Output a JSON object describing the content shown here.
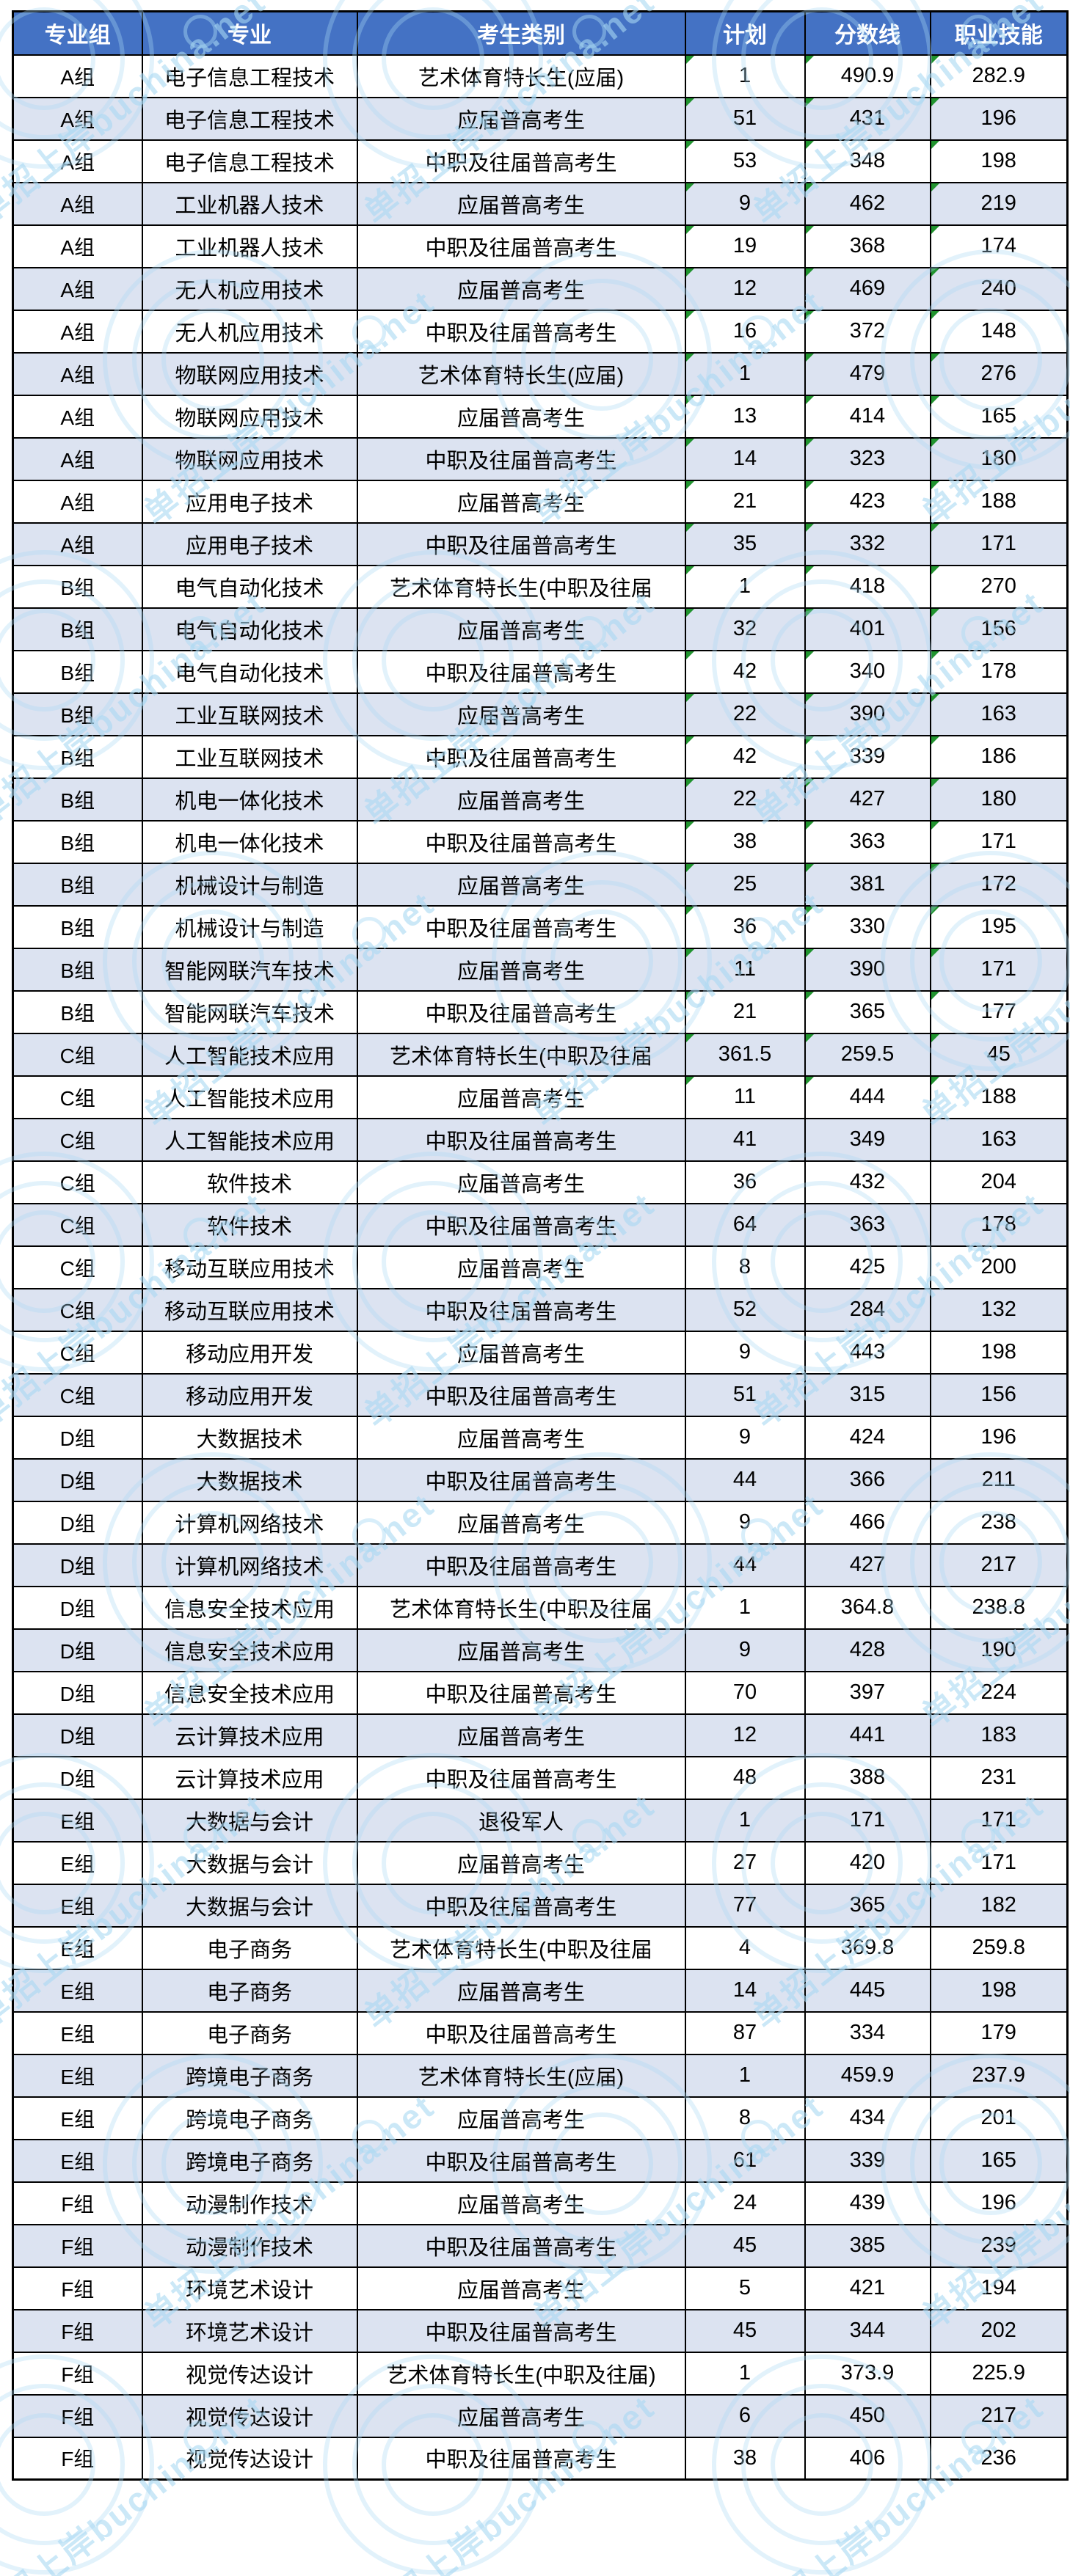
{
  "watermark": {
    "text": "单招上岸buchina.net",
    "color": "#a9d9f3"
  },
  "colors": {
    "header_bg": "#4472c4",
    "header_text": "#ffffff",
    "row_bg": "#ffffff",
    "row_alt_bg": "#dce3f1",
    "border": "#000000",
    "flag_green": "#21942f"
  },
  "table": {
    "columns": [
      {
        "key": "group",
        "label": "专业组"
      },
      {
        "key": "major",
        "label": "专业"
      },
      {
        "key": "category",
        "label": "考生类别"
      },
      {
        "key": "plan",
        "label": "计划"
      },
      {
        "key": "score",
        "label": "分数线"
      },
      {
        "key": "skill",
        "label": "职业技能"
      }
    ],
    "rows": [
      {
        "group": "A组",
        "major": "电子信息工程技术",
        "category": "艺术体育特长生(应届)",
        "plan": "1",
        "score": "490.9",
        "skill": "282.9",
        "flag": true
      },
      {
        "group": "A组",
        "major": "电子信息工程技术",
        "category": "应届普高考生",
        "plan": "51",
        "score": "431",
        "skill": "196",
        "flag": true
      },
      {
        "group": "A组",
        "major": "电子信息工程技术",
        "category": "中职及往届普高考生",
        "plan": "53",
        "score": "348",
        "skill": "198",
        "flag": true
      },
      {
        "group": "A组",
        "major": "工业机器人技术",
        "category": "应届普高考生",
        "plan": "9",
        "score": "462",
        "skill": "219",
        "flag": true
      },
      {
        "group": "A组",
        "major": "工业机器人技术",
        "category": "中职及往届普高考生",
        "plan": "19",
        "score": "368",
        "skill": "174",
        "flag": true
      },
      {
        "group": "A组",
        "major": "无人机应用技术",
        "category": "应届普高考生",
        "plan": "12",
        "score": "469",
        "skill": "240",
        "flag": true
      },
      {
        "group": "A组",
        "major": "无人机应用技术",
        "category": "中职及往届普高考生",
        "plan": "16",
        "score": "372",
        "skill": "148",
        "flag": true
      },
      {
        "group": "A组",
        "major": "物联网应用技术",
        "category": "艺术体育特长生(应届)",
        "plan": "1",
        "score": "479",
        "skill": "276",
        "flag": true
      },
      {
        "group": "A组",
        "major": "物联网应用技术",
        "category": "应届普高考生",
        "plan": "13",
        "score": "414",
        "skill": "165",
        "flag": true
      },
      {
        "group": "A组",
        "major": "物联网应用技术",
        "category": "中职及往届普高考生",
        "plan": "14",
        "score": "323",
        "skill": "180",
        "flag": true
      },
      {
        "group": "A组",
        "major": "应用电子技术",
        "category": "应届普高考生",
        "plan": "21",
        "score": "423",
        "skill": "188",
        "flag": true
      },
      {
        "group": "A组",
        "major": "应用电子技术",
        "category": "中职及往届普高考生",
        "plan": "35",
        "score": "332",
        "skill": "171",
        "flag": true
      },
      {
        "group": "B组",
        "major": "电气自动化技术",
        "category": "艺术体育特长生(中职及往届",
        "plan": "1",
        "score": "418",
        "skill": "270",
        "flag": true
      },
      {
        "group": "B组",
        "major": "电气自动化技术",
        "category": "应届普高考生",
        "plan": "32",
        "score": "401",
        "skill": "156",
        "flag": true
      },
      {
        "group": "B组",
        "major": "电气自动化技术",
        "category": "中职及往届普高考生",
        "plan": "42",
        "score": "340",
        "skill": "178",
        "flag": true
      },
      {
        "group": "B组",
        "major": "工业互联网技术",
        "category": "应届普高考生",
        "plan": "22",
        "score": "390",
        "skill": "163",
        "flag": true
      },
      {
        "group": "B组",
        "major": "工业互联网技术",
        "category": "中职及往届普高考生",
        "plan": "42",
        "score": "339",
        "skill": "186",
        "flag": true
      },
      {
        "group": "B组",
        "major": "机电一体化技术",
        "category": "应届普高考生",
        "plan": "22",
        "score": "427",
        "skill": "180",
        "flag": true
      },
      {
        "group": "B组",
        "major": "机电一体化技术",
        "category": "中职及往届普高考生",
        "plan": "38",
        "score": "363",
        "skill": "171",
        "flag": true
      },
      {
        "group": "B组",
        "major": "机械设计与制造",
        "category": "应届普高考生",
        "plan": "25",
        "score": "381",
        "skill": "172",
        "flag": true
      },
      {
        "group": "B组",
        "major": "机械设计与制造",
        "category": "中职及往届普高考生",
        "plan": "36",
        "score": "330",
        "skill": "195",
        "flag": true
      },
      {
        "group": "B组",
        "major": "智能网联汽车技术",
        "category": "应届普高考生",
        "plan": "11",
        "score": "390",
        "skill": "171",
        "flag": true
      },
      {
        "group": "B组",
        "major": "智能网联汽车技术",
        "category": "中职及往届普高考生",
        "plan": "21",
        "score": "365",
        "skill": "177",
        "flag": true
      },
      {
        "group": "C组",
        "major": "人工智能技术应用",
        "category": "艺术体育特长生(中职及往届",
        "plan": "361.5",
        "score": "259.5",
        "skill": "45",
        "flag": true
      },
      {
        "group": "C组",
        "major": "人工智能技术应用",
        "category": "应届普高考生",
        "plan": "11",
        "score": "444",
        "skill": "188",
        "flag": true
      },
      {
        "group": "C组",
        "major": "人工智能技术应用",
        "category": "中职及往届普高考生",
        "plan": "41",
        "score": "349",
        "skill": "163",
        "flag": false
      },
      {
        "group": "C组",
        "major": "软件技术",
        "category": "应届普高考生",
        "plan": "36",
        "score": "432",
        "skill": "204",
        "flag": false
      },
      {
        "group": "C组",
        "major": "软件技术",
        "category": "中职及往届普高考生",
        "plan": "64",
        "score": "363",
        "skill": "178",
        "flag": false
      },
      {
        "group": "C组",
        "major": "移动互联应用技术",
        "category": "应届普高考生",
        "plan": "8",
        "score": "425",
        "skill": "200",
        "flag": false
      },
      {
        "group": "C组",
        "major": "移动互联应用技术",
        "category": "中职及往届普高考生",
        "plan": "52",
        "score": "284",
        "skill": "132",
        "flag": false
      },
      {
        "group": "C组",
        "major": "移动应用开发",
        "category": "应届普高考生",
        "plan": "9",
        "score": "443",
        "skill": "198",
        "flag": false
      },
      {
        "group": "C组",
        "major": "移动应用开发",
        "category": "中职及往届普高考生",
        "plan": "51",
        "score": "315",
        "skill": "156",
        "flag": false
      },
      {
        "group": "D组",
        "major": "大数据技术",
        "category": "应届普高考生",
        "plan": "9",
        "score": "424",
        "skill": "196",
        "flag": false
      },
      {
        "group": "D组",
        "major": "大数据技术",
        "category": "中职及往届普高考生",
        "plan": "44",
        "score": "366",
        "skill": "211",
        "flag": false
      },
      {
        "group": "D组",
        "major": "计算机网络技术",
        "category": "应届普高考生",
        "plan": "9",
        "score": "466",
        "skill": "238",
        "flag": false
      },
      {
        "group": "D组",
        "major": "计算机网络技术",
        "category": "中职及往届普高考生",
        "plan": "44",
        "score": "427",
        "skill": "217",
        "flag": false
      },
      {
        "group": "D组",
        "major": "信息安全技术应用",
        "category": "艺术体育特长生(中职及往届",
        "plan": "1",
        "score": "364.8",
        "skill": "238.8",
        "flag": false
      },
      {
        "group": "D组",
        "major": "信息安全技术应用",
        "category": "应届普高考生",
        "plan": "9",
        "score": "428",
        "skill": "190",
        "flag": false
      },
      {
        "group": "D组",
        "major": "信息安全技术应用",
        "category": "中职及往届普高考生",
        "plan": "70",
        "score": "397",
        "skill": "224",
        "flag": false
      },
      {
        "group": "D组",
        "major": "云计算技术应用",
        "category": "应届普高考生",
        "plan": "12",
        "score": "441",
        "skill": "183",
        "flag": false
      },
      {
        "group": "D组",
        "major": "云计算技术应用",
        "category": "中职及往届普高考生",
        "plan": "48",
        "score": "388",
        "skill": "231",
        "flag": false
      },
      {
        "group": "E组",
        "major": "大数据与会计",
        "category": "退役军人",
        "plan": "1",
        "score": "171",
        "skill": "171",
        "flag": false
      },
      {
        "group": "E组",
        "major": "大数据与会计",
        "category": "应届普高考生",
        "plan": "27",
        "score": "420",
        "skill": "171",
        "flag": false
      },
      {
        "group": "E组",
        "major": "大数据与会计",
        "category": "中职及往届普高考生",
        "plan": "77",
        "score": "365",
        "skill": "182",
        "flag": false
      },
      {
        "group": "E组",
        "major": "电子商务",
        "category": "艺术体育特长生(中职及往届",
        "plan": "4",
        "score": "369.8",
        "skill": "259.8",
        "flag": false
      },
      {
        "group": "E组",
        "major": "电子商务",
        "category": "应届普高考生",
        "plan": "14",
        "score": "445",
        "skill": "198",
        "flag": false
      },
      {
        "group": "E组",
        "major": "电子商务",
        "category": "中职及往届普高考生",
        "plan": "87",
        "score": "334",
        "skill": "179",
        "flag": false
      },
      {
        "group": "E组",
        "major": "跨境电子商务",
        "category": "艺术体育特长生(应届)",
        "plan": "1",
        "score": "459.9",
        "skill": "237.9",
        "flag": false
      },
      {
        "group": "E组",
        "major": "跨境电子商务",
        "category": "应届普高考生",
        "plan": "8",
        "score": "434",
        "skill": "201",
        "flag": false
      },
      {
        "group": "E组",
        "major": "跨境电子商务",
        "category": "中职及往届普高考生",
        "plan": "61",
        "score": "339",
        "skill": "165",
        "flag": false
      },
      {
        "group": "F组",
        "major": "动漫制作技术",
        "category": "应届普高考生",
        "plan": "24",
        "score": "439",
        "skill": "196",
        "flag": false
      },
      {
        "group": "F组",
        "major": "动漫制作技术",
        "category": "中职及往届普高考生",
        "plan": "45",
        "score": "385",
        "skill": "239",
        "flag": false
      },
      {
        "group": "F组",
        "major": "环境艺术设计",
        "category": "应届普高考生",
        "plan": "5",
        "score": "421",
        "skill": "194",
        "flag": false
      },
      {
        "group": "F组",
        "major": "环境艺术设计",
        "category": "中职及往届普高考生",
        "plan": "45",
        "score": "344",
        "skill": "202",
        "flag": false
      },
      {
        "group": "F组",
        "major": "视觉传达设计",
        "category": "艺术体育特长生(中职及往届)",
        "plan": "1",
        "score": "373.9",
        "skill": "225.9",
        "flag": false
      },
      {
        "group": "F组",
        "major": "视觉传达设计",
        "category": "应届普高考生",
        "plan": "6",
        "score": "450",
        "skill": "217",
        "flag": false
      },
      {
        "group": "F组",
        "major": "视觉传达设计",
        "category": "中职及往届普高考生",
        "plan": "38",
        "score": "406",
        "skill": "236",
        "flag": false
      }
    ]
  }
}
